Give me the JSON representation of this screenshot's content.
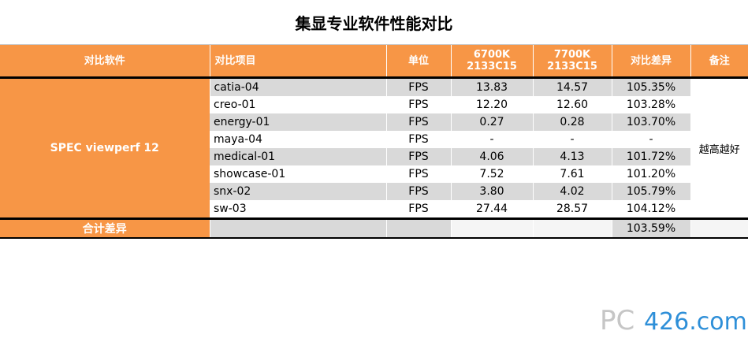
{
  "title": "集显专业软件性能对比",
  "headers": {
    "software": "对比软件",
    "item": "对比项目",
    "unit": "单位",
    "col_a_line1": "6700K",
    "col_a_line2": "2133C15",
    "col_b_line1": "7700K",
    "col_b_line2": "2133C15",
    "diff": "对比差异",
    "remark": "备注"
  },
  "software": "SPEC viewperf 12",
  "remark": "越高越好",
  "rows": [
    {
      "item": "catia-04",
      "unit": "FPS",
      "a": "13.83",
      "b": "14.57",
      "diff": "105.35%"
    },
    {
      "item": "creo-01",
      "unit": "FPS",
      "a": "12.20",
      "b": "12.60",
      "diff": "103.28%"
    },
    {
      "item": "energy-01",
      "unit": "FPS",
      "a": "0.27",
      "b": "0.28",
      "diff": "103.70%"
    },
    {
      "item": "maya-04",
      "unit": "FPS",
      "a": "-",
      "b": "-",
      "diff": "-"
    },
    {
      "item": "medical-01",
      "unit": "FPS",
      "a": "4.06",
      "b": "4.13",
      "diff": "101.72%"
    },
    {
      "item": "showcase-01",
      "unit": "FPS",
      "a": "7.52",
      "b": "7.61",
      "diff": "101.20%"
    },
    {
      "item": "snx-02",
      "unit": "FPS",
      "a": "3.80",
      "b": "4.02",
      "diff": "105.79%"
    },
    {
      "item": "sw-03",
      "unit": "FPS",
      "a": "27.44",
      "b": "28.57",
      "diff": "104.12%"
    }
  ],
  "total": {
    "label": "合计差异",
    "diff": "103.59%"
  },
  "watermark": {
    "text_a": "PC",
    "text_b": "426.com"
  },
  "colors": {
    "header_orange": "#f79646",
    "stripe_gray": "#d9d9d9",
    "logo_blue": "#2e8fd8"
  }
}
